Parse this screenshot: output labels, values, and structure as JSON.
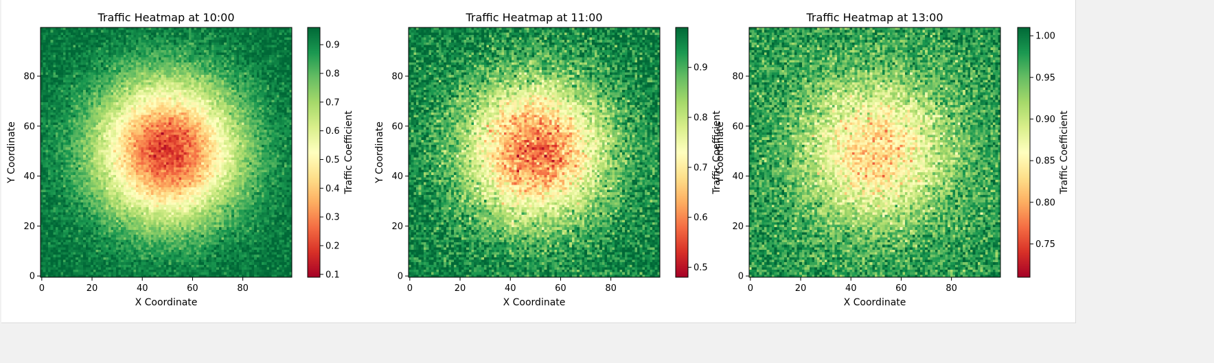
{
  "chart_data": [
    {
      "type": "heatmap",
      "title": "Traffic Heatmap at 10:00",
      "xlabel": "X Coordinate",
      "ylabel": "Y Coordinate",
      "colorbar_label": "Traffic Coefficient",
      "colormap": "RdYlGn",
      "grid_size": [
        100,
        100
      ],
      "xlim": [
        0,
        99
      ],
      "ylim": [
        0,
        99
      ],
      "x_ticks": [
        0,
        20,
        40,
        60,
        80
      ],
      "y_ticks": [
        0,
        20,
        40,
        60,
        80
      ],
      "value_range": [
        0.09,
        0.96
      ],
      "colorbar_ticks": [
        "0.1",
        "0.2",
        "0.3",
        "0.4",
        "0.5",
        "0.6",
        "0.7",
        "0.8",
        "0.9"
      ],
      "center": [
        50,
        50
      ],
      "center_value": 0.2,
      "edge_value": 0.95,
      "spread": 20,
      "noise": 0.04
    },
    {
      "type": "heatmap",
      "title": "Traffic Heatmap at 11:00",
      "xlabel": "X Coordinate",
      "ylabel": "Y Coordinate",
      "colorbar_label": "Traffic Coefficient",
      "colormap": "RdYlGn",
      "grid_size": [
        100,
        100
      ],
      "xlim": [
        0,
        99
      ],
      "ylim": [
        0,
        99
      ],
      "x_ticks": [
        0,
        20,
        40,
        60,
        80
      ],
      "y_ticks": [
        0,
        20,
        40,
        60,
        80
      ],
      "value_range": [
        0.48,
        0.98
      ],
      "colorbar_ticks": [
        "0.5",
        "0.6",
        "0.7",
        "0.8",
        "0.9"
      ],
      "center": [
        50,
        50
      ],
      "center_value": 0.58,
      "edge_value": 0.96,
      "spread": 20,
      "noise": 0.04
    },
    {
      "type": "heatmap",
      "title": "Traffic Heatmap at 13:00",
      "xlabel": "X Coordinate",
      "ylabel": "Y Coordinate",
      "colorbar_label": "Traffic Coefficient",
      "colormap": "RdYlGn",
      "grid_size": [
        100,
        100
      ],
      "xlim": [
        0,
        99
      ],
      "ylim": [
        0,
        99
      ],
      "x_ticks": [
        0,
        20,
        40,
        60,
        80
      ],
      "y_ticks": [
        0,
        20,
        40,
        60,
        80
      ],
      "value_range": [
        0.71,
        1.01
      ],
      "colorbar_ticks": [
        "0.75",
        "0.80",
        "0.85",
        "0.90",
        "0.95",
        "1.00"
      ],
      "center": [
        50,
        50
      ],
      "center_value": 0.82,
      "edge_value": 0.98,
      "spread": 20,
      "noise": 0.025
    }
  ]
}
